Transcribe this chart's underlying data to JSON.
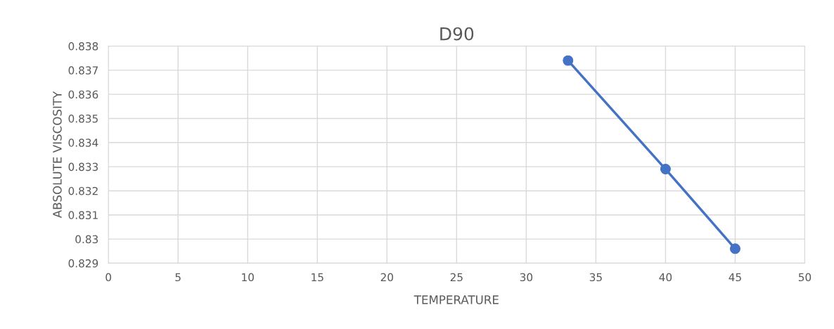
{
  "chart_data": {
    "type": "line",
    "title": "D90",
    "xlabel": "TEMPERATURE",
    "ylabel": "ABSOLUTE VISCOSITY",
    "x": [
      33,
      40,
      45
    ],
    "series": [
      {
        "color": "#4472c4",
        "values": [
          0.8374,
          0.8329,
          0.8296
        ]
      }
    ],
    "xlim": [
      0,
      50
    ],
    "xticks": [
      0,
      5,
      10,
      15,
      20,
      25,
      30,
      35,
      40,
      45,
      50
    ],
    "ylim": [
      0.829,
      0.838
    ],
    "yticks": [
      {
        "value": 0.829,
        "label": "0.829"
      },
      {
        "value": 0.83,
        "label": "0.83"
      },
      {
        "value": 0.831,
        "label": "0.831"
      },
      {
        "value": 0.832,
        "label": "0.832"
      },
      {
        "value": 0.833,
        "label": "0.833"
      },
      {
        "value": 0.834,
        "label": "0.834"
      },
      {
        "value": 0.835,
        "label": "0.835"
      },
      {
        "value": 0.836,
        "label": "0.836"
      },
      {
        "value": 0.837,
        "label": "0.837"
      },
      {
        "value": 0.838,
        "label": "0.838"
      }
    ],
    "grid": true,
    "marker": "circle",
    "line_style": "solid"
  }
}
